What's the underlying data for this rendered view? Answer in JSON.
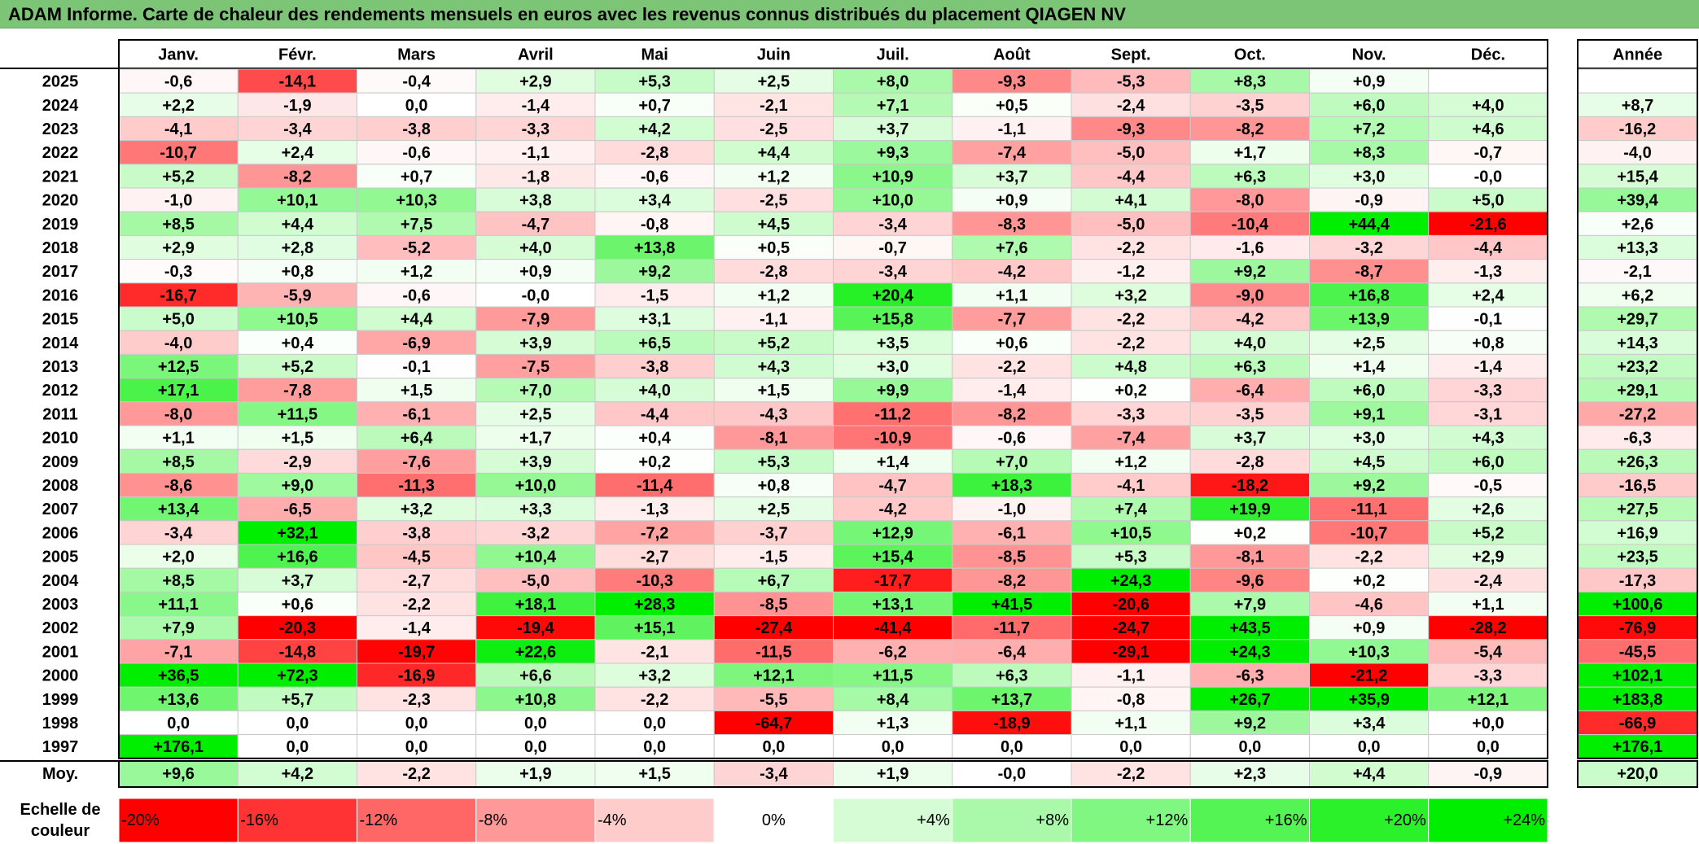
{
  "title": "ADAM Informe. Carte de chaleur des rendements mensuels en euros avec les revenus connus distribués du placement QIAGEN NV",
  "chart_data": {
    "type": "heatmap",
    "title": "ADAM Informe. Carte de chaleur des rendements mensuels en euros avec les revenus connus distribués du placement QIAGEN NV",
    "columns": [
      "Janv.",
      "Févr.",
      "Mars",
      "Avril",
      "Mai",
      "Juin",
      "Juil.",
      "Août",
      "Sept.",
      "Oct.",
      "Nov.",
      "Déc."
    ],
    "year_header": "Année",
    "rows": [
      {
        "label": "2025",
        "values": [
          "-0,6",
          "-14,1",
          "-0,4",
          "+2,9",
          "+5,3",
          "+2,5",
          "+8,0",
          "-9,3",
          "-5,3",
          "+8,3",
          "+0,9",
          ""
        ],
        "year": ""
      },
      {
        "label": "2024",
        "values": [
          "+2,2",
          "-1,9",
          "0,0",
          "-1,4",
          "+0,7",
          "-2,1",
          "+7,1",
          "+0,5",
          "-2,4",
          "-3,5",
          "+6,0",
          "+4,0"
        ],
        "year": "+8,7"
      },
      {
        "label": "2023",
        "values": [
          "-4,1",
          "-3,4",
          "-3,8",
          "-3,3",
          "+4,2",
          "-2,5",
          "+3,7",
          "-1,1",
          "-9,3",
          "-8,2",
          "+7,2",
          "+4,6"
        ],
        "year": "-16,2"
      },
      {
        "label": "2022",
        "values": [
          "-10,7",
          "+2,4",
          "-0,6",
          "-1,1",
          "-2,8",
          "+4,4",
          "+9,3",
          "-7,4",
          "-5,0",
          "+1,7",
          "+8,3",
          "-0,7"
        ],
        "year": "-4,0"
      },
      {
        "label": "2021",
        "values": [
          "+5,2",
          "-8,2",
          "+0,7",
          "-1,8",
          "-0,6",
          "+1,2",
          "+10,9",
          "+3,7",
          "-4,4",
          "+6,3",
          "+3,0",
          "-0,0"
        ],
        "year": "+15,4"
      },
      {
        "label": "2020",
        "values": [
          "-1,0",
          "+10,1",
          "+10,3",
          "+3,8",
          "+3,4",
          "-2,5",
          "+10,0",
          "+0,9",
          "+4,1",
          "-8,0",
          "-0,9",
          "+5,0"
        ],
        "year": "+39,4"
      },
      {
        "label": "2019",
        "values": [
          "+8,5",
          "+4,4",
          "+7,5",
          "-4,7",
          "-0,8",
          "+4,5",
          "-3,4",
          "-8,3",
          "-5,0",
          "-10,4",
          "+44,4",
          "-21,6"
        ],
        "year": "+2,6"
      },
      {
        "label": "2018",
        "values": [
          "+2,9",
          "+2,8",
          "-5,2",
          "+4,0",
          "+13,8",
          "+0,5",
          "-0,7",
          "+7,6",
          "-2,2",
          "-1,6",
          "-3,2",
          "-4,4"
        ],
        "year": "+13,3"
      },
      {
        "label": "2017",
        "values": [
          "-0,3",
          "+0,8",
          "+1,2",
          "+0,9",
          "+9,2",
          "-2,8",
          "-3,4",
          "-4,2",
          "-1,2",
          "+9,2",
          "-8,7",
          "-1,3"
        ],
        "year": "-2,1"
      },
      {
        "label": "2016",
        "values": [
          "-16,7",
          "-5,9",
          "-0,6",
          "-0,0",
          "-1,5",
          "+1,2",
          "+20,4",
          "+1,1",
          "+3,2",
          "-9,0",
          "+16,8",
          "+2,4"
        ],
        "year": "+6,2"
      },
      {
        "label": "2015",
        "values": [
          "+5,0",
          "+10,5",
          "+4,4",
          "-7,9",
          "+3,1",
          "-1,1",
          "+15,8",
          "-7,7",
          "-2,2",
          "-4,2",
          "+13,9",
          "-0,1"
        ],
        "year": "+29,7"
      },
      {
        "label": "2014",
        "values": [
          "-4,0",
          "+0,4",
          "-6,9",
          "+3,9",
          "+6,5",
          "+5,2",
          "+3,5",
          "+0,6",
          "-2,2",
          "+4,0",
          "+2,5",
          "+0,8"
        ],
        "year": "+14,3"
      },
      {
        "label": "2013",
        "values": [
          "+12,5",
          "+5,2",
          "-0,1",
          "-7,5",
          "-3,8",
          "+4,3",
          "+3,0",
          "-2,2",
          "+4,8",
          "+6,3",
          "+1,4",
          "-1,4"
        ],
        "year": "+23,2"
      },
      {
        "label": "2012",
        "values": [
          "+17,1",
          "-7,8",
          "+1,5",
          "+7,0",
          "+4,0",
          "+1,5",
          "+9,9",
          "-1,4",
          "+0,2",
          "-6,4",
          "+6,0",
          "-3,3"
        ],
        "year": "+29,1"
      },
      {
        "label": "2011",
        "values": [
          "-8,0",
          "+11,5",
          "-6,1",
          "+2,5",
          "-4,4",
          "-4,3",
          "-11,2",
          "-8,2",
          "-3,3",
          "-3,5",
          "+9,1",
          "-3,1"
        ],
        "year": "-27,2"
      },
      {
        "label": "2010",
        "values": [
          "+1,1",
          "+1,5",
          "+6,4",
          "+1,7",
          "+0,4",
          "-8,1",
          "-10,9",
          "-0,6",
          "-7,4",
          "+3,7",
          "+3,0",
          "+4,3"
        ],
        "year": "-6,3"
      },
      {
        "label": "2009",
        "values": [
          "+8,5",
          "-2,9",
          "-7,6",
          "+3,9",
          "+0,2",
          "+5,3",
          "+1,4",
          "+7,0",
          "+1,2",
          "-2,8",
          "+4,5",
          "+6,0"
        ],
        "year": "+26,3"
      },
      {
        "label": "2008",
        "values": [
          "-8,6",
          "+9,0",
          "-11,3",
          "+10,0",
          "-11,4",
          "+0,8",
          "-4,7",
          "+18,3",
          "-4,1",
          "-18,2",
          "+9,2",
          "-0,5"
        ],
        "year": "-16,5"
      },
      {
        "label": "2007",
        "values": [
          "+13,4",
          "-6,5",
          "+3,2",
          "+3,3",
          "-1,3",
          "+2,5",
          "-4,2",
          "-1,0",
          "+7,4",
          "+19,9",
          "-11,1",
          "+2,6"
        ],
        "year": "+27,5"
      },
      {
        "label": "2006",
        "values": [
          "-3,4",
          "+32,1",
          "-3,8",
          "-3,2",
          "-7,2",
          "-3,7",
          "+12,9",
          "-6,1",
          "+10,5",
          "+0,2",
          "-10,7",
          "+5,2"
        ],
        "year": "+16,9"
      },
      {
        "label": "2005",
        "values": [
          "+2,0",
          "+16,6",
          "-4,5",
          "+10,4",
          "-2,7",
          "-1,5",
          "+15,4",
          "-8,5",
          "+5,3",
          "-8,1",
          "-2,2",
          "+2,9"
        ],
        "year": "+23,5"
      },
      {
        "label": "2004",
        "values": [
          "+8,5",
          "+3,7",
          "-2,7",
          "-5,0",
          "-10,3",
          "+6,7",
          "-17,7",
          "-8,2",
          "+24,3",
          "-9,6",
          "+0,2",
          "-2,4"
        ],
        "year": "-17,3"
      },
      {
        "label": "2003",
        "values": [
          "+11,1",
          "+0,6",
          "-2,2",
          "+18,1",
          "+28,3",
          "-8,5",
          "+13,1",
          "+41,5",
          "-20,6",
          "+7,9",
          "-4,6",
          "+1,1"
        ],
        "year": "+100,6"
      },
      {
        "label": "2002",
        "values": [
          "+7,9",
          "-20,3",
          "-1,4",
          "-19,4",
          "+15,1",
          "-27,4",
          "-41,4",
          "-11,7",
          "-24,7",
          "+43,5",
          "+0,9",
          "-28,2"
        ],
        "year": "-76,9"
      },
      {
        "label": "2001",
        "values": [
          "-7,1",
          "-14,8",
          "-19,7",
          "+22,6",
          "-2,1",
          "-11,5",
          "-6,2",
          "-6,4",
          "-29,1",
          "+24,3",
          "+10,3",
          "-5,4"
        ],
        "year": "-45,5"
      },
      {
        "label": "2000",
        "values": [
          "+36,5",
          "+72,3",
          "-16,9",
          "+6,6",
          "+3,2",
          "+12,1",
          "+11,5",
          "+6,3",
          "-1,1",
          "-6,3",
          "-21,2",
          "-3,3"
        ],
        "year": "+102,1"
      },
      {
        "label": "1999",
        "values": [
          "+13,6",
          "+5,7",
          "-2,3",
          "+10,8",
          "-2,2",
          "-5,5",
          "+8,4",
          "+13,7",
          "-0,8",
          "+26,7",
          "+35,9",
          "+12,1"
        ],
        "year": "+183,8"
      },
      {
        "label": "1998",
        "values": [
          "0,0",
          "0,0",
          "0,0",
          "0,0",
          "0,0",
          "-64,7",
          "+1,3",
          "-18,9",
          "+1,1",
          "+9,2",
          "+3,4",
          "+0,0"
        ],
        "year": "-66,9"
      },
      {
        "label": "1997",
        "values": [
          "+176,1",
          "0,0",
          "0,0",
          "0,0",
          "0,0",
          "0,0",
          "0,0",
          "0,0",
          "0,0",
          "0,0",
          "0,0",
          "0,0"
        ],
        "year": "+176,1"
      }
    ],
    "average": {
      "label": "Moy.",
      "values": [
        "+9,6",
        "+4,2",
        "-2,2",
        "+1,9",
        "+1,5",
        "-3,4",
        "+1,9",
        "-0,0",
        "-2,2",
        "+2,3",
        "+4,4",
        "-0,9"
      ],
      "year": "+20,0"
    },
    "scale": {
      "label_line1": "Echelle de",
      "label_line2": "couleur",
      "steps": [
        "-20%",
        "-16%",
        "-12%",
        "-8%",
        "-4%",
        "0%",
        "+4%",
        "+8%",
        "+12%",
        "+16%",
        "+20%",
        "+24%"
      ],
      "step_values": [
        -20,
        -16,
        -12,
        -8,
        -4,
        0,
        4,
        8,
        12,
        16,
        20,
        24
      ]
    },
    "colors": {
      "negative": "#ff0000",
      "zero": "#ffffff",
      "positive": "#00ee00",
      "title_bg": "#7dc576"
    }
  }
}
